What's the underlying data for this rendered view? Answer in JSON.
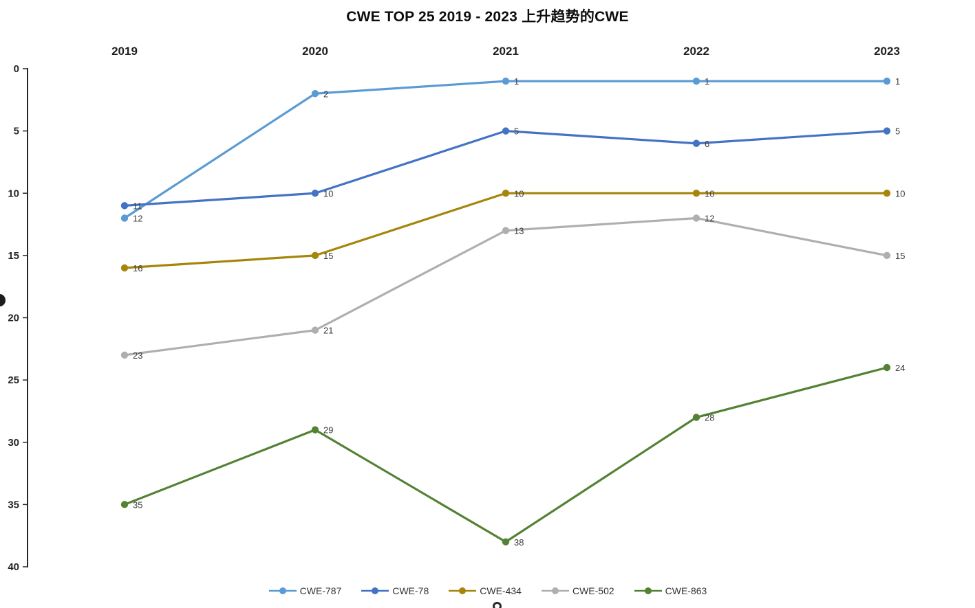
{
  "chart_data": {
    "type": "line",
    "title": "CWE TOP 25 2019 - 2023 上升趋势的CWE",
    "categories": [
      "2019",
      "2020",
      "2021",
      "2022",
      "2023"
    ],
    "series": [
      {
        "name": "CWE-787",
        "color": "#5B9BD5",
        "values": [
          12,
          2,
          1,
          1,
          1
        ]
      },
      {
        "name": "CWE-78",
        "color": "#4472C4",
        "values": [
          11,
          10,
          5,
          6,
          5
        ]
      },
      {
        "name": "CWE-434",
        "color": "#A6850B",
        "values": [
          16,
          15,
          10,
          10,
          10
        ]
      },
      {
        "name": "CWE-502",
        "color": "#AFAFAF",
        "values": [
          23,
          21,
          13,
          12,
          15
        ]
      },
      {
        "name": "CWE-863",
        "color": "#548235",
        "values": [
          35,
          29,
          38,
          28,
          24
        ]
      }
    ],
    "y_axis": {
      "min": 0,
      "max": 40,
      "ticks": [
        0,
        5,
        10,
        15,
        20,
        25,
        30,
        35,
        40
      ],
      "inverted": true,
      "label_side": "left"
    },
    "x_axis": {
      "position": "top"
    },
    "legend": {
      "position": "bottom"
    },
    "grid": false,
    "data_labels": true
  }
}
